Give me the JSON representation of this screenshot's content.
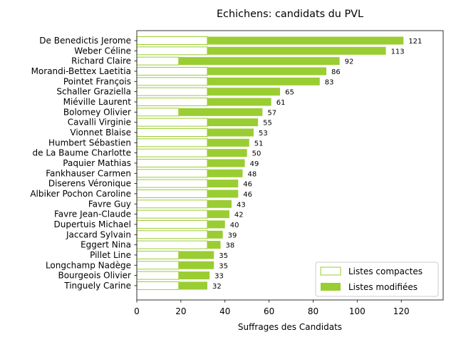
{
  "chart_data": {
    "type": "bar",
    "orientation": "horizontal",
    "stacked": true,
    "title": "Echichens: candidats du PVL",
    "xlabel": "Suffrages des Candidats",
    "ylabel": "",
    "xlim": [
      0,
      139
    ],
    "xticks": [
      "0",
      "20",
      "40",
      "60",
      "80",
      "100",
      "120"
    ],
    "grid": false,
    "legend_position": "lower right",
    "colors": {
      "compactes_fill": "#ffffff",
      "compactes_edge": "#9acd32",
      "modifiees": "#9acd32"
    },
    "categories": [
      "De Benedictis Jerome",
      "Weber Céline",
      "Richard Claire",
      "Morandi-Bettex Laetitia",
      "Pointet François",
      "Schaller Graziella",
      "Miéville Laurent",
      "Bolomey Olivier",
      "Cavalli Virginie",
      "Vionnet Blaise",
      "Humbert Sébastien",
      "de La Baume Charlotte",
      "Paquier Mathias",
      "Fankhauser Carmen",
      "Diserens Véronique",
      "Albiker Pochon Caroline",
      "Favre Guy",
      "Favre Jean-Claude",
      "Dupertuis Michael",
      "Jaccard Sylvain",
      "Eggert Nina",
      "Pillet Line",
      "Longchamp Nadège",
      "Bourgeois Olivier",
      "Tinguely Carine"
    ],
    "totals": [
      "121",
      "113",
      "92",
      "86",
      "83",
      "65",
      "61",
      "57",
      "55",
      "53",
      "51",
      "50",
      "49",
      "48",
      "46",
      "46",
      "43",
      "42",
      "40",
      "39",
      "38",
      "35",
      "35",
      "33",
      "32"
    ],
    "series": [
      {
        "name": "Listes compactes",
        "values": [
          32,
          32,
          19,
          32,
          32,
          32,
          32,
          19,
          32,
          32,
          32,
          32,
          32,
          32,
          32,
          32,
          32,
          32,
          32,
          32,
          32,
          19,
          19,
          19,
          19
        ]
      },
      {
        "name": "Listes modifiées",
        "values": [
          89,
          81,
          73,
          54,
          51,
          33,
          29,
          38,
          23,
          21,
          19,
          18,
          17,
          16,
          14,
          14,
          11,
          10,
          8,
          7,
          6,
          16,
          16,
          14,
          13
        ]
      }
    ]
  }
}
